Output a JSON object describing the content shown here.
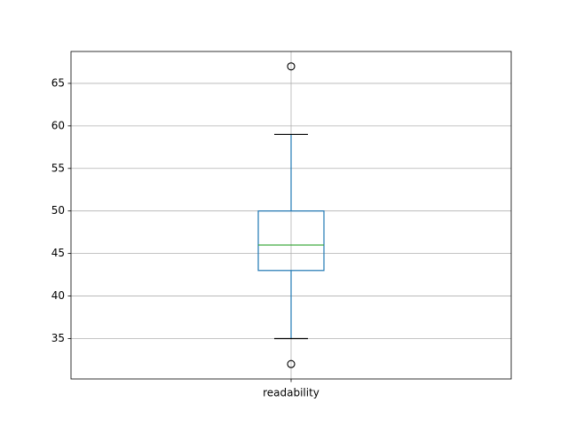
{
  "chart_data": {
    "type": "box",
    "categories": [
      "readability"
    ],
    "boxes": [
      {
        "whislo": 35,
        "q1": 43,
        "med": 46,
        "q3": 50,
        "whishi": 59,
        "fliers": [
          32,
          67
        ]
      }
    ],
    "box_color": "#1f77b4",
    "median_color": "#2ca02c",
    "cap_color": "#000000",
    "ylim": [
      30.25,
      68.75
    ],
    "yticks": [
      35,
      40,
      45,
      50,
      55,
      60,
      65
    ],
    "grid": true
  }
}
